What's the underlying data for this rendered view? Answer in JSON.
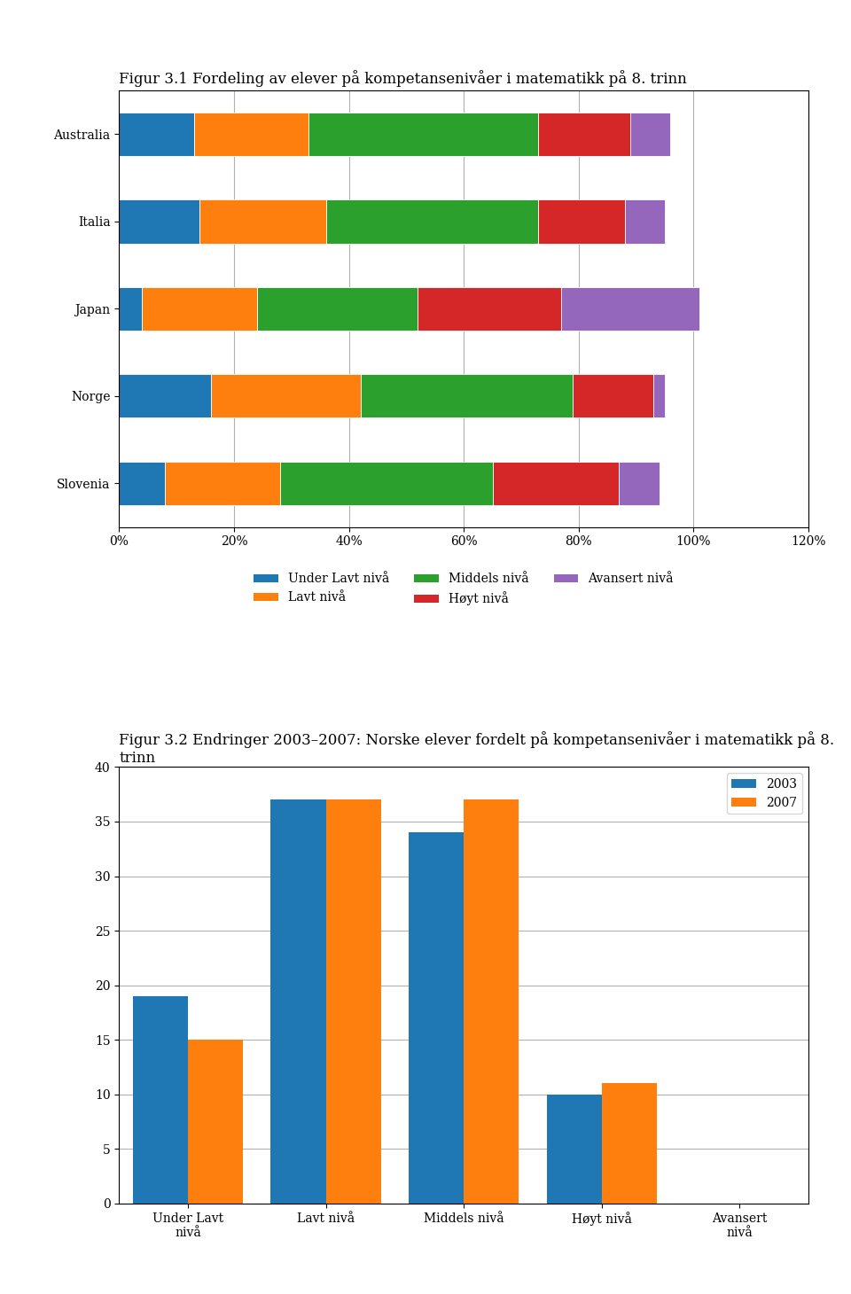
{
  "chart_data": [
    {
      "type": "bar",
      "title": "Figur 3.1 Fordeling av elever på kompetansenivåer i matematikk på 8. trinn",
      "orientation": "horizontal",
      "stacked": true,
      "categories": [
        "Australia",
        "Italia",
        "Japan",
        "Norge",
        "Slovenia"
      ],
      "series": [
        {
          "name": "Under Lavt nivå",
          "values": [
            13,
            14,
            4,
            16,
            8
          ]
        },
        {
          "name": "Lavt nivå",
          "values": [
            20,
            22,
            20,
            26,
            20
          ]
        },
        {
          "name": "Middels nivå",
          "values": [
            40,
            37,
            28,
            37,
            37
          ]
        },
        {
          "name": "Høyt nivå",
          "values": [
            16,
            15,
            25,
            14,
            22
          ]
        },
        {
          "name": "Avansert nivå",
          "values": [
            7,
            7,
            24,
            2,
            7
          ]
        }
      ],
      "xlim": [
        0,
        120
      ],
      "xticks": [
        {
          "value": 0,
          "label": "0%"
        },
        {
          "value": 20,
          "label": "20%"
        },
        {
          "value": 40,
          "label": "40%"
        },
        {
          "value": 60,
          "label": "60%"
        },
        {
          "value": 80,
          "label": "80%"
        },
        {
          "value": 100,
          "label": "100%"
        },
        {
          "value": 120,
          "label": "120%"
        }
      ],
      "grid": true,
      "legend": "upper center"
    },
    {
      "type": "bar",
      "title": "Figur 3.2 Endringer 2003–2007: Norske elever fordelt på kompetansenivåer i matematikk på 8. trinn",
      "categories": [
        "Under Lavt\nnivå",
        "Lavt nivå",
        "Middels nivå",
        "Høyt nivå",
        "Avansert\nnivå"
      ],
      "series": [
        {
          "name": "2003",
          "values": [
            19,
            37,
            34,
            10,
            0
          ]
        },
        {
          "name": "2007",
          "values": [
            15,
            37,
            37,
            11,
            0
          ]
        }
      ],
      "ylim": [
        0,
        40
      ],
      "yticks": [
        0,
        5,
        10,
        15,
        20,
        25,
        30,
        35,
        40
      ],
      "grid": true,
      "legend": "upper right"
    }
  ]
}
